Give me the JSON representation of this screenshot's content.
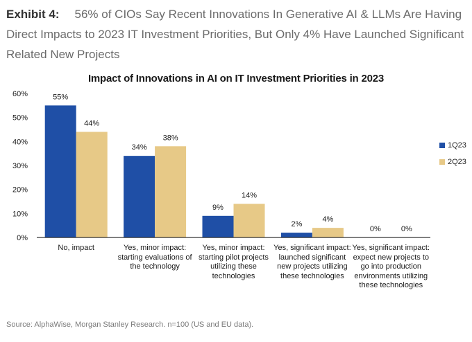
{
  "header": {
    "label": "Exhibit 4:",
    "title": "56% of CIOs Say Recent Innovations In Generative AI & LLMs Are Having Direct Impacts to 2023 IT Investment Priorities, But Only 4% Have Launched Significant Related New Projects"
  },
  "source": "Source: AlphaWise, Morgan Stanley Research. n=100 (US and EU data).",
  "colors": {
    "series1": "#1f4fa6",
    "series2": "#e7c987",
    "axis": "#000000"
  },
  "chart_data": {
    "type": "bar",
    "title": "Impact of Innovations in AI on IT Investment Priorities in 2023",
    "categories": [
      "No, impact",
      "Yes, minor impact: starting evaluations of the technology",
      "Yes, minor impact: starting pilot projects utilizing these technologies",
      "Yes, significant impact: launched significant new projects utilizing these technologies",
      "Yes, significant impact: expect new projects to go into production environments utilizing these technologies"
    ],
    "category_lines": [
      [
        "No, impact"
      ],
      [
        "Yes, minor impact:",
        "starting evaluations of",
        "the technology"
      ],
      [
        "Yes, minor impact:",
        "starting pilot projects",
        "utilizing these",
        "technologies"
      ],
      [
        "Yes, significant impact:",
        "launched significant",
        "new projects utilizing",
        "these technologies"
      ],
      [
        "Yes, significant impact:",
        "expect new projects to",
        "go into production",
        "environments utilizing",
        "these technologies"
      ]
    ],
    "series": [
      {
        "name": "1Q23",
        "values": [
          55,
          34,
          9,
          2,
          0
        ],
        "labels": [
          "55%",
          "34%",
          "9%",
          "2%",
          "0%"
        ]
      },
      {
        "name": "2Q23",
        "values": [
          44,
          38,
          14,
          4,
          0
        ],
        "labels": [
          "44%",
          "38%",
          "14%",
          "4%",
          "0%"
        ]
      }
    ],
    "ylim": [
      0,
      60
    ],
    "yticks": [
      0,
      10,
      20,
      30,
      40,
      50,
      60
    ],
    "ytick_labels": [
      "0%",
      "10%",
      "20%",
      "30%",
      "40%",
      "50%",
      "60%"
    ],
    "xlabel": "",
    "ylabel": "",
    "legend_position": "right",
    "grid": false
  }
}
